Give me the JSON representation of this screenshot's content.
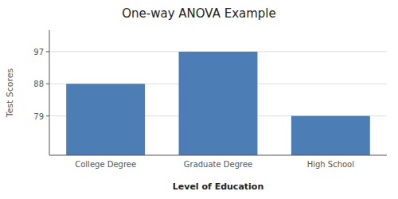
{
  "chart_data": {
    "type": "bar",
    "title": "One-way ANOVA Example",
    "categories": [
      "College Degree",
      "Graduate Degree",
      "High School"
    ],
    "values": [
      88,
      97,
      79
    ],
    "color": "#4C7DB5",
    "xlabel": "Level of Education",
    "ylabel": "Test Scores",
    "ylim": [
      68,
      103
    ],
    "yticks": [
      79,
      88,
      97
    ],
    "grid": true
  }
}
